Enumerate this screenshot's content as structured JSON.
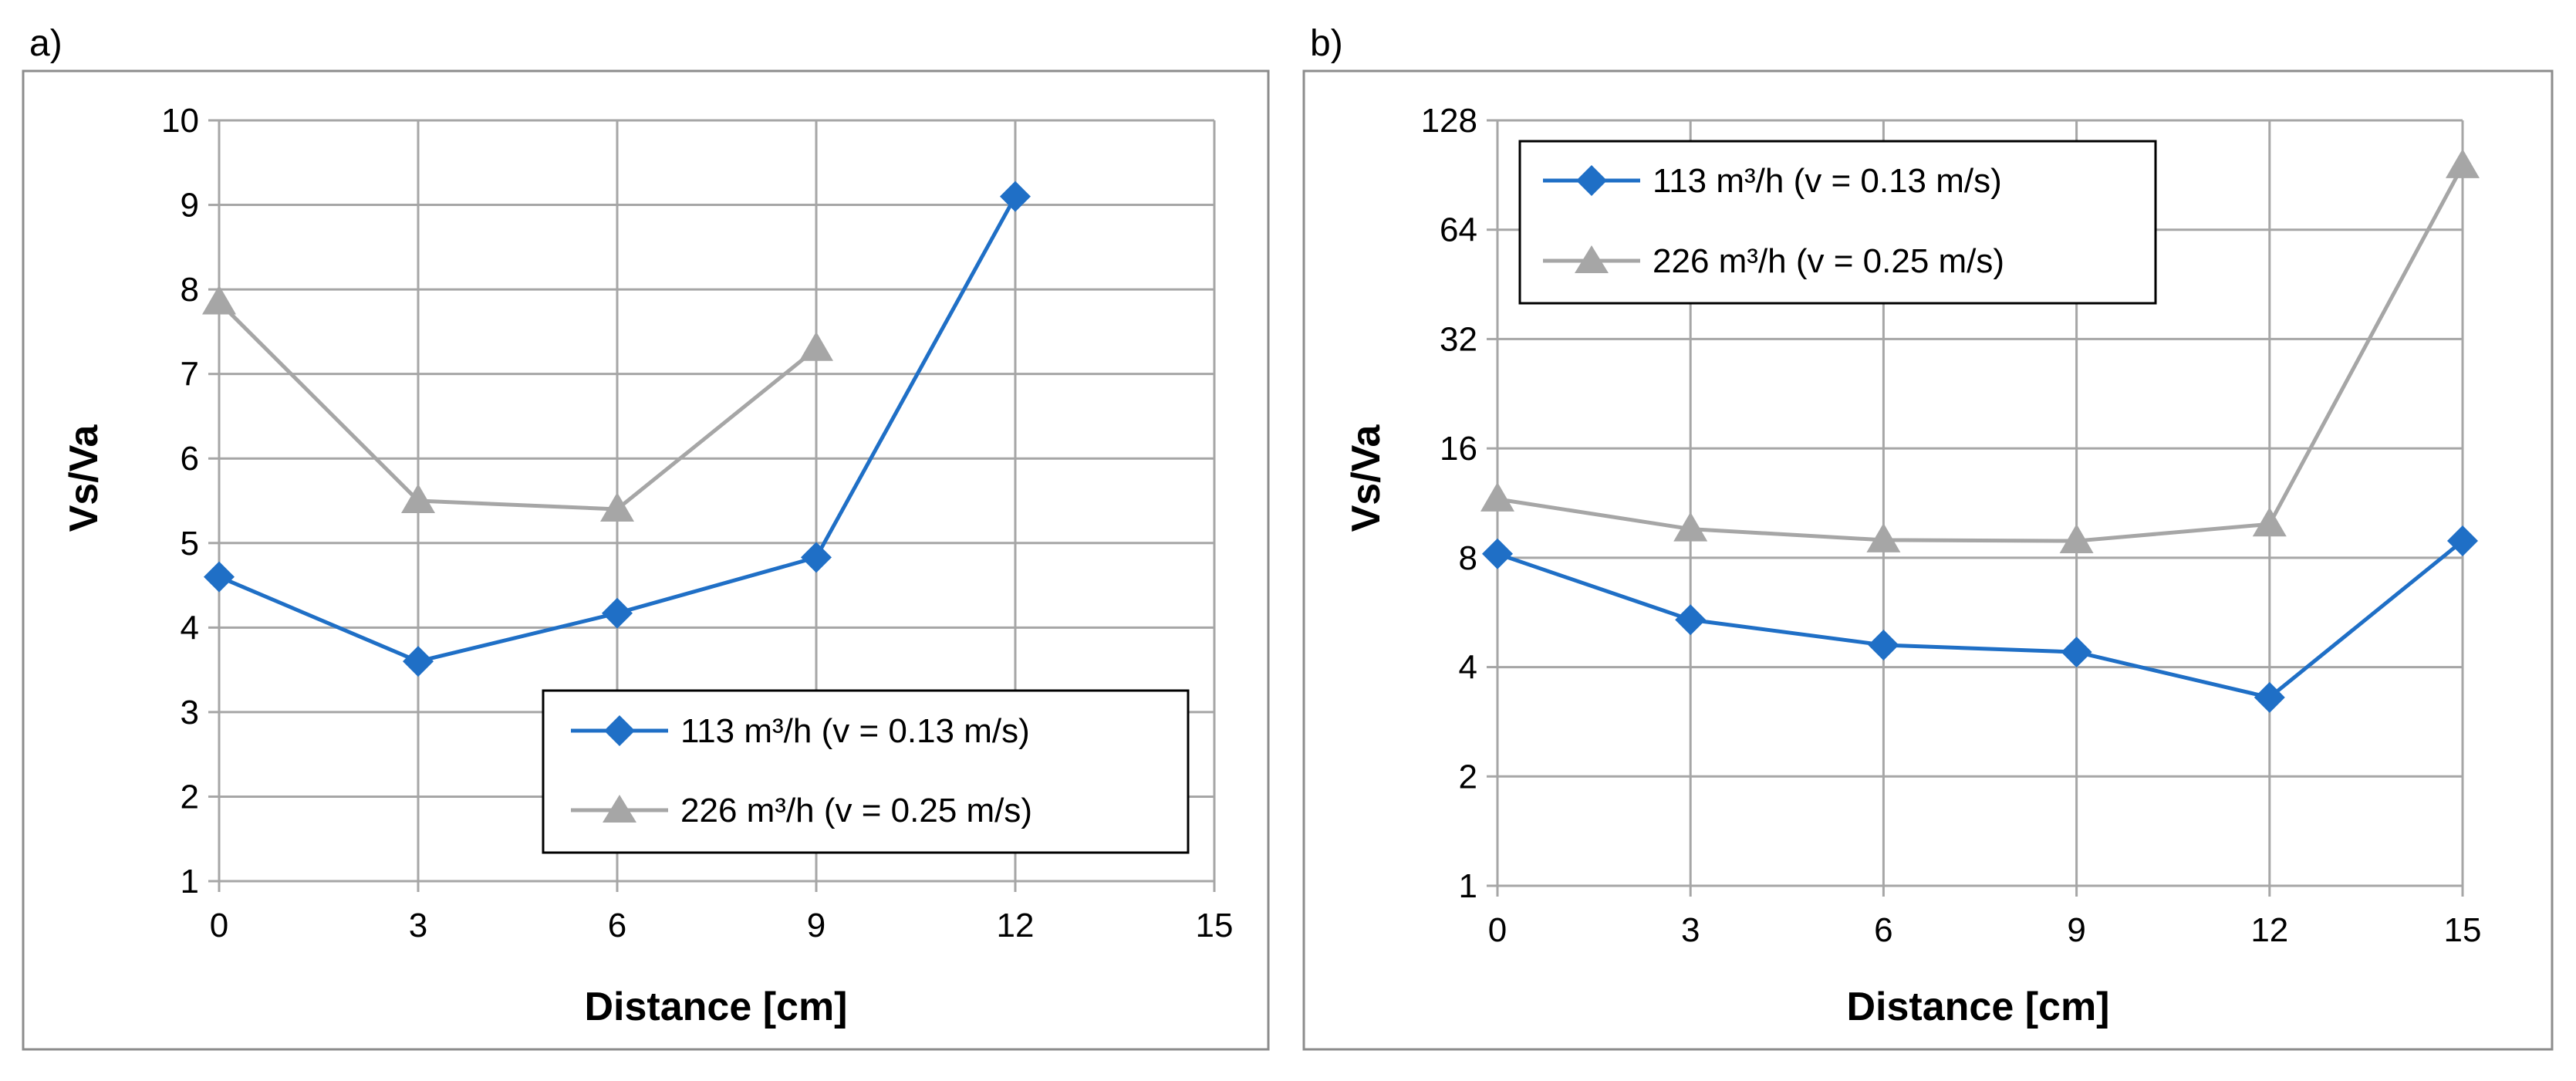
{
  "chart_data": [
    {
      "panel_label": "a)",
      "type": "line",
      "scale": "linear",
      "xlabel": "Distance [cm]",
      "ylabel": "Vs/Va",
      "xlim": [
        0,
        15
      ],
      "ylim": [
        1,
        10
      ],
      "xticks": [
        "0",
        "3",
        "6",
        "9",
        "12",
        "15"
      ],
      "yticks": [
        "1",
        "2",
        "3",
        "4",
        "5",
        "6",
        "7",
        "8",
        "9",
        "10"
      ],
      "grid": true,
      "legend_position": "bottom-right",
      "series": [
        {
          "name": "113 m³/h (v = 0.13 m/s)",
          "color": "#1f6fc6",
          "marker": "diamond",
          "x": [
            0,
            3,
            6,
            9,
            12
          ],
          "y": [
            4.6,
            3.6,
            4.17,
            4.83,
            9.1
          ]
        },
        {
          "name": "226 m³/h (v = 0.25 m/s)",
          "color": "#a6a6a6",
          "marker": "triangle",
          "x": [
            0,
            3,
            6,
            9
          ],
          "y": [
            7.85,
            5.5,
            5.4,
            7.3
          ]
        }
      ]
    },
    {
      "panel_label": "b)",
      "type": "line",
      "scale": "log2",
      "xlabel": "Distance [cm]",
      "ylabel": "Vs/Va",
      "xlim": [
        0,
        15
      ],
      "ylim": [
        1,
        128
      ],
      "xticks": [
        "0",
        "3",
        "6",
        "9",
        "12",
        "15"
      ],
      "yticks": [
        "1",
        "2",
        "4",
        "8",
        "16",
        "32",
        "64",
        "128"
      ],
      "grid": true,
      "legend_position": "top-left",
      "series": [
        {
          "name": "113 m³/h (v = 0.13 m/s)",
          "color": "#1f6fc6",
          "marker": "diamond",
          "x": [
            0,
            3,
            6,
            9,
            12,
            15
          ],
          "y": [
            8.2,
            5.4,
            4.6,
            4.4,
            3.3,
            8.9
          ]
        },
        {
          "name": "226 m³/h (v = 0.25 m/s)",
          "color": "#a6a6a6",
          "marker": "triangle",
          "x": [
            0,
            3,
            6,
            9,
            12,
            15
          ],
          "y": [
            11.6,
            9.6,
            8.95,
            8.9,
            9.9,
            96
          ]
        }
      ]
    }
  ]
}
